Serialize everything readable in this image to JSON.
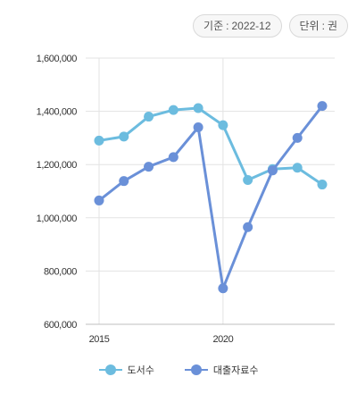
{
  "badges": {
    "basis_label": "기준",
    "basis_value": "2022-12",
    "unit_label": "단위",
    "unit_value": "권"
  },
  "chart_data": {
    "type": "line",
    "x": [
      2015,
      2016,
      2017,
      2018,
      2019,
      2020,
      2021,
      2022,
      2023,
      2024
    ],
    "x_tick_labels": [
      "2015",
      "2020"
    ],
    "x_ticks": [
      2015,
      2020
    ],
    "xlim": [
      2015,
      2024
    ],
    "ylim": [
      600000,
      1600000
    ],
    "y_ticks": [
      600000,
      800000,
      1000000,
      1200000,
      1400000,
      1600000
    ],
    "y_tick_labels": [
      "600,000",
      "800,000",
      "1,000,000",
      "1,200,000",
      "1,400,000",
      "1,600,000"
    ],
    "grid": true,
    "legend_position": "bottom",
    "series": [
      {
        "name": "도서수",
        "color": "#6cbcdf",
        "values": [
          1290000,
          1305000,
          1380000,
          1405000,
          1412000,
          1348000,
          1142000,
          1183000,
          1188000,
          1125000
        ]
      },
      {
        "name": "대출자료수",
        "color": "#6a90d8",
        "values": [
          1065000,
          1138000,
          1192000,
          1228000,
          1340000,
          735000,
          965000,
          1178000,
          1300000,
          1420000
        ]
      }
    ]
  }
}
